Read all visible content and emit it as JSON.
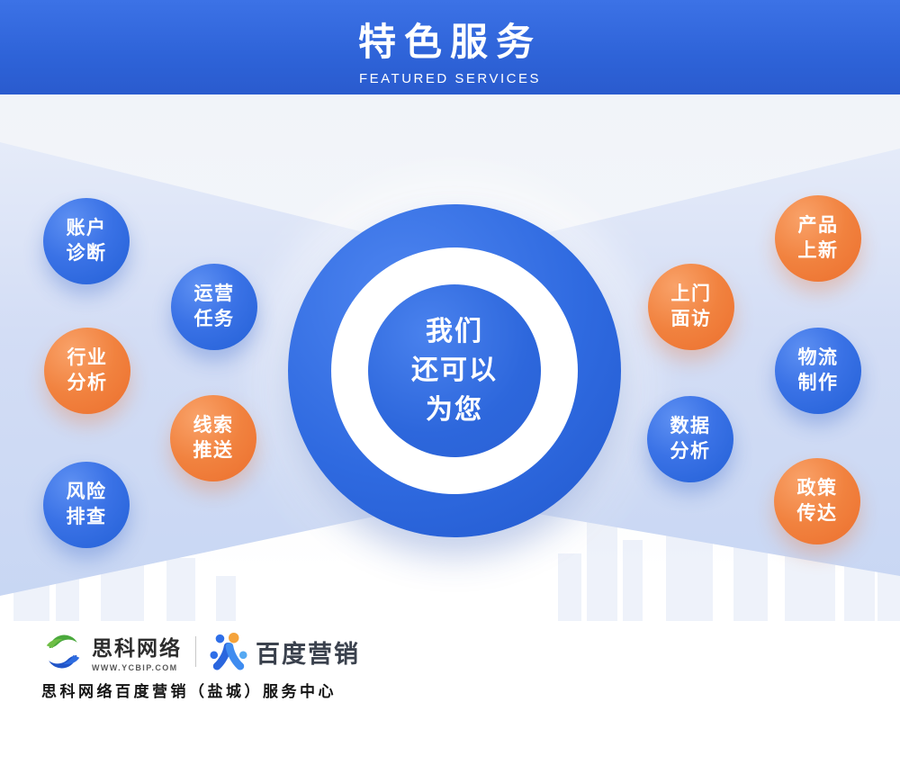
{
  "banner": {
    "title": "特色服务",
    "subtitle": "FEATURED SERVICES"
  },
  "center": {
    "line1": "我们",
    "line2": "还可以",
    "line3": "为您"
  },
  "bubbles": [
    {
      "id": "account-diagnosis",
      "lines": [
        "账户",
        "诊断"
      ],
      "color": "blue"
    },
    {
      "id": "operation-tasks",
      "lines": [
        "运营",
        "任务"
      ],
      "color": "blue"
    },
    {
      "id": "industry-analysis",
      "lines": [
        "行业",
        "分析"
      ],
      "color": "orange"
    },
    {
      "id": "lead-push",
      "lines": [
        "线索",
        "推送"
      ],
      "color": "orange"
    },
    {
      "id": "risk-check",
      "lines": [
        "风险",
        "排查"
      ],
      "color": "blue"
    },
    {
      "id": "product-launch",
      "lines": [
        "产品",
        "上新"
      ],
      "color": "orange"
    },
    {
      "id": "onsite-visit",
      "lines": [
        "上门",
        "面访"
      ],
      "color": "orange"
    },
    {
      "id": "logistics-production",
      "lines": [
        "物流",
        "制作"
      ],
      "color": "blue"
    },
    {
      "id": "data-analysis",
      "lines": [
        "数据",
        "分析"
      ],
      "color": "blue"
    },
    {
      "id": "policy-delivery",
      "lines": [
        "政策",
        "传达"
      ],
      "color": "orange"
    }
  ],
  "footer": {
    "brand1": {
      "name": "思科网络",
      "url": "WWW.YCBIP.COM"
    },
    "brand2": {
      "name": "百度营销"
    },
    "tagline": "思科网络百度营销（盐城）服务中心"
  },
  "colors": {
    "banner_blue": "#2e63d8",
    "bubble_blue": "#2e68dd",
    "bubble_orange": "#f0803d",
    "band_light_blue": "#c9d7f3",
    "logo_green": "#4aa93c",
    "logo_blue": "#2155c8",
    "baidu_dot_orange": "#f5a33b"
  },
  "icons": {
    "brand1_logo": "s-swirl-logo",
    "brand2_logo": "baidu-marketing-figure-logo"
  }
}
